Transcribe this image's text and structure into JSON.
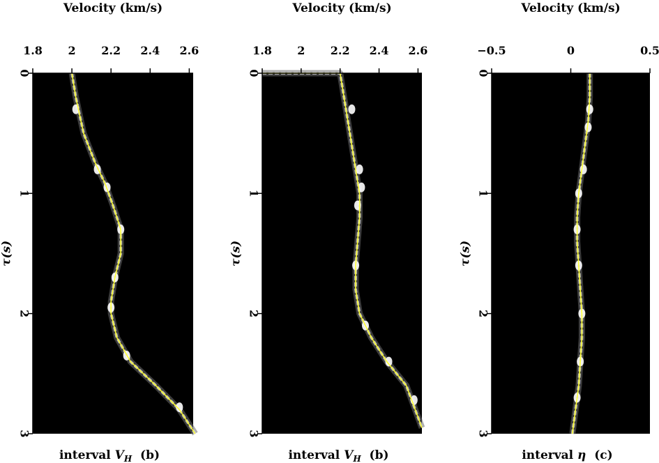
{
  "chart_data": [
    {
      "type": "line",
      "title": "Velocity (km/s)",
      "ylabel": "τ(s)",
      "caption_text": "interval ",
      "caption_var": "V",
      "caption_sub": "H",
      "caption_tag": "(b)",
      "xlim": [
        1.8,
        2.62
      ],
      "ylim": [
        0,
        3
      ],
      "xticks": [
        "1.8",
        "2",
        "2.2",
        "2.4",
        "2.6"
      ],
      "xtick_values": [
        1.8,
        2.0,
        2.2,
        2.4,
        2.6
      ],
      "yticks": [
        "0",
        "1",
        "2",
        "3"
      ],
      "ytick_values": [
        0,
        1,
        2,
        3
      ],
      "background": "heatmap (semblance)",
      "series": [
        {
          "color": "#ffff33",
          "x": [
            2.0,
            2.02,
            2.06,
            2.12,
            2.17,
            2.21,
            2.25,
            2.25,
            2.22,
            2.2,
            2.2,
            2.23,
            2.3,
            2.43,
            2.55,
            2.63
          ],
          "y": [
            0.0,
            0.2,
            0.5,
            0.75,
            0.92,
            1.1,
            1.3,
            1.5,
            1.7,
            1.9,
            2.0,
            2.2,
            2.4,
            2.6,
            2.8,
            3.0
          ]
        }
      ],
      "bright_points": [
        {
          "x": 2.02,
          "y": 0.3
        },
        {
          "x": 2.13,
          "y": 0.8
        },
        {
          "x": 2.18,
          "y": 0.95
        },
        {
          "x": 2.25,
          "y": 1.3
        },
        {
          "x": 2.22,
          "y": 1.7
        },
        {
          "x": 2.2,
          "y": 1.95
        },
        {
          "x": 2.28,
          "y": 2.35
        },
        {
          "x": 2.55,
          "y": 2.78
        }
      ]
    },
    {
      "type": "line",
      "title": "Velocity (km/s)",
      "ylabel": "τ(s)",
      "caption_text": "interval ",
      "caption_var": "V",
      "caption_sub": "H",
      "caption_tag": "(b)",
      "xlim": [
        1.8,
        2.62
      ],
      "ylim": [
        0,
        3
      ],
      "xticks": [
        "1.8",
        "2",
        "2.2",
        "2.4",
        "2.6"
      ],
      "xtick_values": [
        1.8,
        2.0,
        2.2,
        2.4,
        2.6
      ],
      "yticks": [
        "0",
        "1",
        "2",
        "3"
      ],
      "ytick_values": [
        0,
        1,
        2,
        3
      ],
      "background": "heatmap (semblance)",
      "series": [
        {
          "color": "#ffff33",
          "x": [
            1.8,
            2.2,
            2.22,
            2.25,
            2.28,
            2.3,
            2.3,
            2.29,
            2.28,
            2.28,
            2.3,
            2.36,
            2.44,
            2.54,
            2.62
          ],
          "y": [
            0.0,
            0.0,
            0.2,
            0.5,
            0.8,
            1.0,
            1.2,
            1.4,
            1.6,
            1.8,
            2.0,
            2.2,
            2.4,
            2.6,
            2.95
          ]
        }
      ],
      "bright_points": [
        {
          "x": 2.26,
          "y": 0.3
        },
        {
          "x": 2.3,
          "y": 0.8
        },
        {
          "x": 2.31,
          "y": 0.95
        },
        {
          "x": 2.29,
          "y": 1.1
        },
        {
          "x": 2.28,
          "y": 1.6
        },
        {
          "x": 2.33,
          "y": 2.1
        },
        {
          "x": 2.45,
          "y": 2.4
        },
        {
          "x": 2.58,
          "y": 2.72
        }
      ]
    },
    {
      "type": "line",
      "title": "Velocity (km/s)",
      "ylabel": "τ(s)",
      "caption_text": "interval ",
      "caption_var": "η",
      "caption_sub": "",
      "caption_tag": "(c)",
      "xlim": [
        -0.5,
        0.5
      ],
      "ylim": [
        0,
        3
      ],
      "xticks": [
        "−0.5",
        "0",
        "0.5"
      ],
      "xtick_values": [
        -0.5,
        0.0,
        0.5
      ],
      "yticks": [
        "0",
        "1",
        "2",
        "3"
      ],
      "ytick_values": [
        0,
        1,
        2,
        3
      ],
      "background": "heatmap (semblance)",
      "series": [
        {
          "color": "#ffff33",
          "x": [
            0.12,
            0.12,
            0.11,
            0.09,
            0.07,
            0.05,
            0.04,
            0.04,
            0.05,
            0.06,
            0.07,
            0.07,
            0.06,
            0.05,
            0.03,
            0.01
          ],
          "y": [
            0.0,
            0.2,
            0.4,
            0.6,
            0.8,
            1.0,
            1.2,
            1.4,
            1.6,
            1.8,
            2.0,
            2.2,
            2.4,
            2.6,
            2.8,
            3.0
          ]
        }
      ],
      "bright_points": [
        {
          "x": 0.12,
          "y": 0.3
        },
        {
          "x": 0.11,
          "y": 0.45
        },
        {
          "x": 0.08,
          "y": 0.8
        },
        {
          "x": 0.05,
          "y": 1.0
        },
        {
          "x": 0.04,
          "y": 1.3
        },
        {
          "x": 0.05,
          "y": 1.6
        },
        {
          "x": 0.07,
          "y": 2.0
        },
        {
          "x": 0.06,
          "y": 2.4
        },
        {
          "x": 0.04,
          "y": 2.7
        }
      ]
    }
  ]
}
